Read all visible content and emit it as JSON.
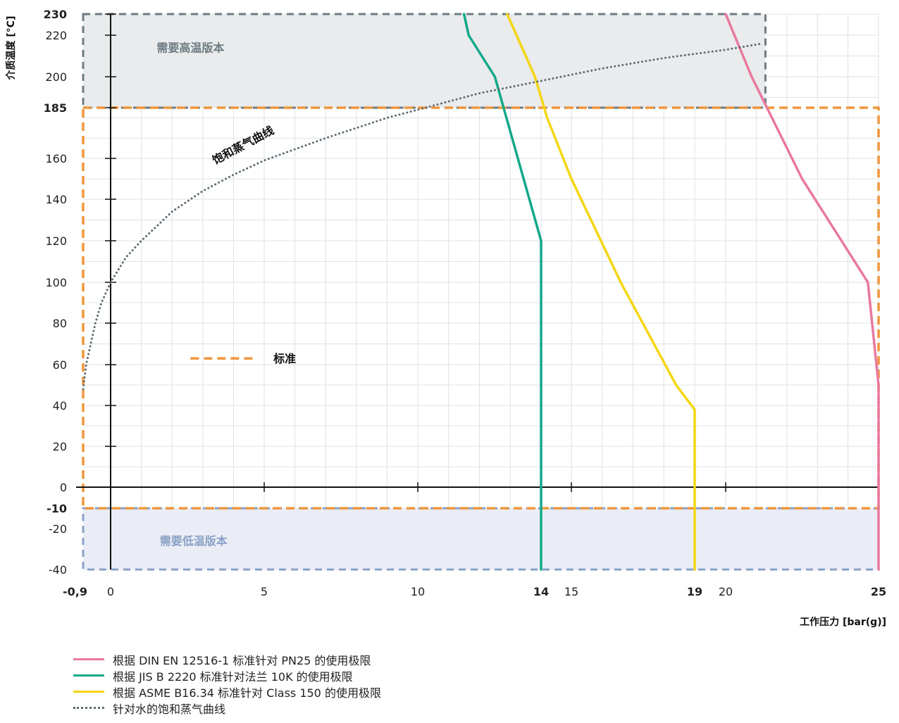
{
  "chart_data": {
    "type": "line",
    "xlabel": "工作压力 [bar(g)]",
    "ylabel": "介质温度 [°C]",
    "xlim": [
      -0.9,
      25
    ],
    "ylim": [
      -40,
      230
    ],
    "x_ticks": [
      {
        "value": -0.9,
        "label": "-0,9",
        "bold": true
      },
      {
        "value": 0,
        "label": "0",
        "bold": false
      },
      {
        "value": 5,
        "label": "5",
        "bold": false
      },
      {
        "value": 10,
        "label": "10",
        "bold": false
      },
      {
        "value": 14,
        "label": "14",
        "bold": true
      },
      {
        "value": 15,
        "label": "15",
        "bold": false
      },
      {
        "value": 19,
        "label": "19",
        "bold": true
      },
      {
        "value": 20,
        "label": "20",
        "bold": false
      },
      {
        "value": 25,
        "label": "25",
        "bold": true
      }
    ],
    "y_ticks": [
      {
        "value": 230,
        "label": "230",
        "bold": true
      },
      {
        "value": 220,
        "label": "220",
        "bold": false
      },
      {
        "value": 200,
        "label": "200",
        "bold": false
      },
      {
        "value": 185,
        "label": "185",
        "bold": true
      },
      {
        "value": 160,
        "label": "160",
        "bold": false
      },
      {
        "value": 140,
        "label": "140",
        "bold": false
      },
      {
        "value": 120,
        "label": "120",
        "bold": false
      },
      {
        "value": 100,
        "label": "100",
        "bold": false
      },
      {
        "value": 80,
        "label": "80",
        "bold": false
      },
      {
        "value": 60,
        "label": "60",
        "bold": false
      },
      {
        "value": 40,
        "label": "40",
        "bold": false
      },
      {
        "value": 20,
        "label": "20",
        "bold": false
      },
      {
        "value": 0,
        "label": "0",
        "bold": false
      },
      {
        "value": -10,
        "label": "-10",
        "bold": true
      },
      {
        "value": -20,
        "label": "-20",
        "bold": false
      },
      {
        "value": -40,
        "label": "-40",
        "bold": false
      }
    ],
    "regions": [
      {
        "label": "需要高温版本",
        "x": [
          -0.9,
          21.3
        ],
        "y": [
          185,
          230
        ],
        "fill": "#e9ebec",
        "border": "#6e7b82",
        "text_color": "#6e7b82",
        "label_at": [
          1.5,
          212
        ]
      },
      {
        "label": "需要低温版本",
        "x": [
          -0.9,
          25
        ],
        "y": [
          -40,
          -10
        ],
        "fill": "#eaedf5",
        "border": "#8aa1c6",
        "text_color": "#8aa1c6",
        "label_at": [
          1.6,
          -28
        ]
      }
    ],
    "standard_region": {
      "x": [
        -0.9,
        25
      ],
      "y": [
        -10,
        185
      ],
      "color": "#f0963c"
    },
    "standard_legend": {
      "label": "标准",
      "line_x": [
        2.6,
        4.7
      ],
      "y": 63,
      "label_at": [
        5.3,
        63
      ]
    },
    "curve_label": {
      "text": "饱和蒸气曲线",
      "at": [
        3.4,
        157
      ],
      "angle": -28
    },
    "series": [
      {
        "name": "根据 DIN EN 12516-1 标准针对 PN25 的使用极限",
        "color": "#e8799e",
        "style": "solid",
        "x": [
          25,
          25,
          24.65,
          22.5,
          20.85,
          20
        ],
        "y": [
          -40,
          50,
          100,
          150,
          200,
          230
        ]
      },
      {
        "name": "根据 JIS B 2220 标准针对法兰 10K 的使用极限",
        "color": "#14a88a",
        "style": "solid",
        "x": [
          14,
          14,
          12.5,
          11.65,
          11.5
        ],
        "y": [
          -40,
          120,
          200,
          220,
          230
        ]
      },
      {
        "name": "根据 ASME B16.34 标准针对 Class 150 的使用极限",
        "color": "#f4d614",
        "style": "solid",
        "x": [
          19,
          19,
          18.4,
          16.6,
          15,
          14.2,
          13.8,
          12.9
        ],
        "y": [
          -40,
          38,
          50,
          100,
          150,
          180,
          200,
          230
        ]
      },
      {
        "name": "针对水的饱和蒸气曲线",
        "color": "#5f6b72",
        "style": "dotted",
        "x": [
          -0.9,
          -0.8,
          -0.5,
          -0.3,
          0,
          0.5,
          1,
          2,
          3,
          4,
          5,
          7,
          9,
          10,
          12,
          14,
          16,
          18,
          20,
          21.2
        ],
        "y": [
          48,
          60,
          80,
          90,
          100,
          112,
          120,
          134,
          144,
          152,
          159,
          170,
          180,
          184,
          192,
          198,
          204,
          209,
          213,
          216
        ]
      }
    ]
  }
}
